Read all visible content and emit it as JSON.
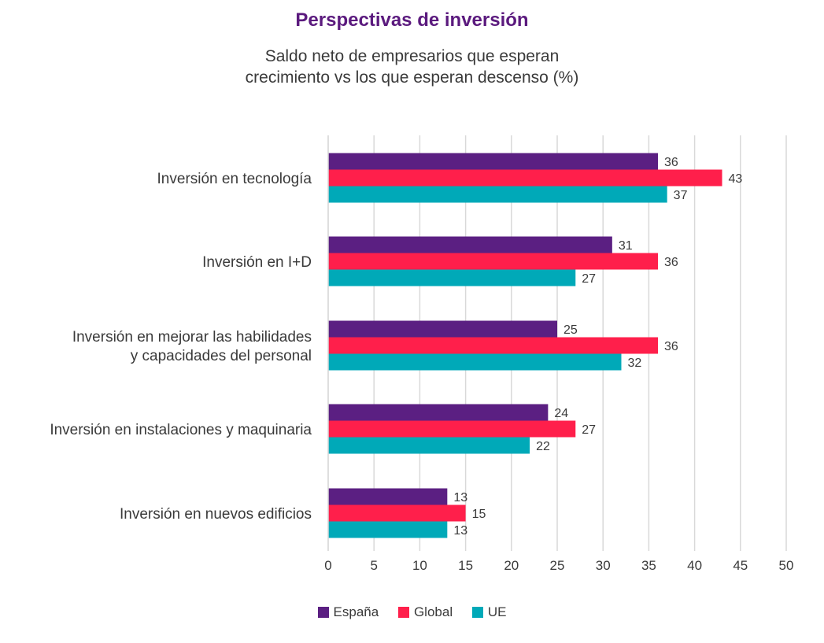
{
  "chart_data": {
    "type": "bar",
    "orientation": "horizontal",
    "title": "Perspectivas de inversión",
    "subtitle_lines": [
      "Saldo neto de empresarios que esperan",
      "crecimiento vs los que esperan descenso (%)"
    ],
    "categories": [
      [
        "Inversión en tecnología"
      ],
      [
        "Inversión en I+D"
      ],
      [
        "Inversión en mejorar las habilidades",
        "y capacidades del personal"
      ],
      [
        "Inversión en instalaciones y maquinaria"
      ],
      [
        "Inversión en nuevos edificios"
      ]
    ],
    "series": [
      {
        "name": "España",
        "color": "#5b1f82",
        "values": [
          36,
          31,
          25,
          24,
          13
        ]
      },
      {
        "name": "Global",
        "color": "#ff1f4b",
        "values": [
          43,
          36,
          36,
          27,
          15
        ]
      },
      {
        "name": "UE",
        "color": "#00a9b8",
        "values": [
          37,
          27,
          32,
          22,
          13
        ]
      }
    ],
    "xlim": [
      0,
      50
    ],
    "xticks": [
      "0",
      "5",
      "10",
      "15",
      "20",
      "25",
      "30",
      "35",
      "40",
      "45",
      "50"
    ],
    "grid": true,
    "legend_position": "bottom-center",
    "gridline_color": "#d9d9d9"
  }
}
